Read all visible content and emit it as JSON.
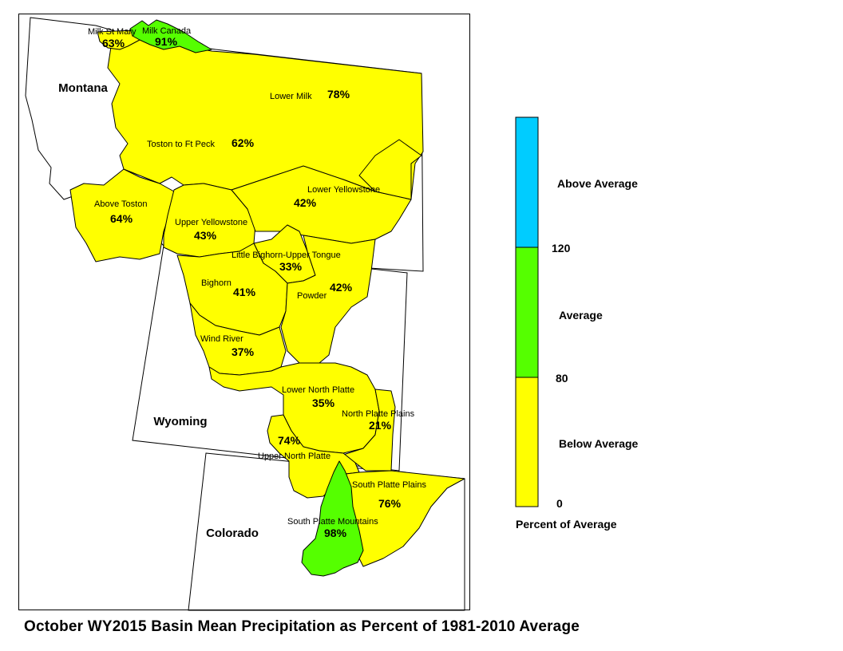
{
  "colors": {
    "below_average": "#ffff00",
    "average": "#55ff00",
    "above_average": "#00ccff",
    "outline": "#000000"
  },
  "states": [
    {
      "name": "Montana"
    },
    {
      "name": "Wyoming"
    },
    {
      "name": "Colorado"
    }
  ],
  "basins": [
    {
      "id": "milk-st-mary",
      "name": "Milk St Mary",
      "percent": "63%",
      "category": "below_average"
    },
    {
      "id": "milk-canada",
      "name": "Milk Canada",
      "percent": "91%",
      "category": "average"
    },
    {
      "id": "lower-milk",
      "name": "Lower Milk",
      "percent": "78%",
      "category": "below_average"
    },
    {
      "id": "toston-to-ft-peck",
      "name": "Toston to Ft Peck",
      "percent": "62%",
      "category": "below_average"
    },
    {
      "id": "above-toston",
      "name": "Above Toston",
      "percent": "64%",
      "category": "below_average"
    },
    {
      "id": "upper-yellowstone",
      "name": "Upper Yellowstone",
      "percent": "43%",
      "category": "below_average"
    },
    {
      "id": "lower-yellowstone",
      "name": "Lower Yellowstone",
      "percent": "42%",
      "category": "below_average"
    },
    {
      "id": "little-bighorn-upper-tongue",
      "name": "Little Bighorn-Upper Tongue",
      "percent": "33%",
      "category": "below_average"
    },
    {
      "id": "bighorn",
      "name": "Bighorn",
      "percent": "41%",
      "category": "below_average"
    },
    {
      "id": "powder",
      "name": "Powder",
      "percent": "42%",
      "category": "below_average"
    },
    {
      "id": "wind-river",
      "name": "Wind River",
      "percent": "37%",
      "category": "below_average"
    },
    {
      "id": "lower-north-platte",
      "name": "Lower North Platte",
      "percent": "35%",
      "category": "below_average"
    },
    {
      "id": "north-platte-plains",
      "name": "North Platte Plains",
      "percent": "21%",
      "category": "below_average"
    },
    {
      "id": "upper-north-platte",
      "name": "Upper North Platte",
      "percent": "74%",
      "category": "below_average"
    },
    {
      "id": "south-platte-plains",
      "name": "South Platte Plains",
      "percent": "76%",
      "category": "below_average"
    },
    {
      "id": "south-platte-mountains",
      "name": "South Platte Mountains",
      "percent": "98%",
      "category": "average"
    }
  ],
  "legend": {
    "title": "Percent of Average",
    "classes": [
      {
        "label": "Above Average",
        "category": "above_average"
      },
      {
        "label": "Average",
        "category": "average"
      },
      {
        "label": "Below Average",
        "category": "below_average"
      }
    ],
    "breaks": [
      "120",
      "80",
      "0"
    ]
  },
  "title": "October WY2015 Basin Mean Precipitation as Percent of 1981-2010 Average"
}
